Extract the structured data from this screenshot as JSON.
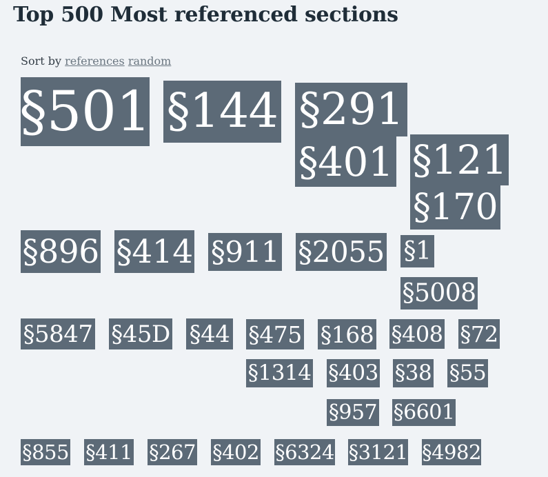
{
  "page": {
    "title": "Top 500 Most referenced sections"
  },
  "sort": {
    "label": "Sort by",
    "options": [
      "references",
      "random"
    ]
  },
  "sections": [
    "§501",
    "§144",
    "§291",
    "§401",
    "§121",
    "§170",
    "§896",
    "§414",
    "§911",
    "§2055",
    "§1",
    "§5008",
    "§5847",
    "§45D",
    "§44",
    "§475",
    "§168",
    "§408",
    "§72",
    "§1314",
    "§403",
    "§38",
    "§55",
    "§957",
    "§6601",
    "§855",
    "§411",
    "§267",
    "§402",
    "§6324",
    "§3121",
    "§4982"
  ],
  "colors": {
    "background": "#f0f3f6",
    "tag": "#5c6a77",
    "tag_text": "#ffffff",
    "title": "#1f2d38",
    "link": "#6a7680"
  }
}
